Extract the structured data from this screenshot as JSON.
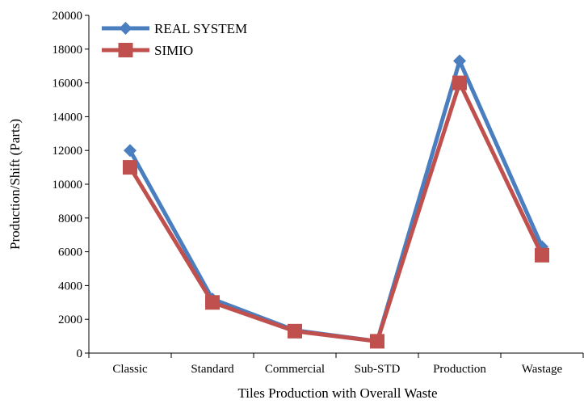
{
  "chart_data": {
    "type": "line",
    "categories": [
      "Classic",
      "Standard",
      "Commercial",
      "Sub-STD",
      "Production",
      "Wastage"
    ],
    "series": [
      {
        "name": "REAL SYSTEM",
        "values": [
          12000,
          3200,
          1350,
          700,
          17300,
          6300
        ],
        "color": "#4a7ebf",
        "marker": "diamond"
      },
      {
        "name": "SIMIO",
        "values": [
          11000,
          3000,
          1300,
          700,
          16000,
          5800
        ],
        "color": "#c0504d",
        "marker": "square"
      }
    ],
    "xlabel": "Tiles Production with Overall Waste",
    "ylabel": "Production/Shift (Parts)",
    "ylim": [
      0,
      20000
    ],
    "yticks": [
      0,
      2000,
      4000,
      6000,
      8000,
      10000,
      12000,
      14000,
      16000,
      18000,
      20000
    ],
    "grid": false,
    "legend_position": "top-left"
  }
}
